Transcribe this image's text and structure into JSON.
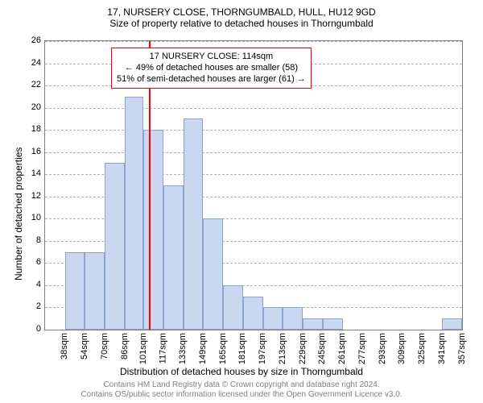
{
  "title_line1": "17, NURSERY CLOSE, THORNGUMBALD, HULL, HU12 9GD",
  "title_line2": "Size of property relative to detached houses in Thorngumbald",
  "title_fontsize": 12,
  "ylabel": "Number of detached properties",
  "xlabel": "Distribution of detached houses by size in Thorngumbald",
  "axis_label_fontsize": 12,
  "footer_line1": "Contains HM Land Registry data © Crown copyright and database right 2024.",
  "footer_line2": "Contains OS/public sector information licensed under the Open Government Licence v3.0.",
  "footer_fontsize": 10,
  "footer_color": "#808080",
  "chart": {
    "type": "histogram",
    "background_color": "#ffffff",
    "border_color": "#808080",
    "grid_color": "#b0b0b0",
    "bar_fill": "#c9d8f0",
    "bar_border": "#8aa3d0",
    "marker_color": "#ff0000",
    "marker_x_value": 114,
    "ylim": [
      0,
      26
    ],
    "yticks": [
      0,
      2,
      4,
      6,
      8,
      10,
      12,
      14,
      16,
      18,
      20,
      22,
      24,
      26
    ],
    "xlim": [
      30,
      365
    ],
    "xticks": [
      "38sqm",
      "54sqm",
      "70sqm",
      "86sqm",
      "101sqm",
      "117sqm",
      "133sqm",
      "149sqm",
      "165sqm",
      "181sqm",
      "197sqm",
      "213sqm",
      "229sqm",
      "245sqm",
      "261sqm",
      "277sqm",
      "293sqm",
      "309sqm",
      "325sqm",
      "341sqm",
      "357sqm"
    ],
    "xtick_values": [
      38,
      54,
      70,
      86,
      101,
      117,
      133,
      149,
      165,
      181,
      197,
      213,
      229,
      245,
      261,
      277,
      293,
      309,
      325,
      341,
      357
    ],
    "tick_fontsize": 11,
    "bars": [
      {
        "x0": 46,
        "x1": 62,
        "y": 7
      },
      {
        "x0": 62,
        "x1": 78,
        "y": 7
      },
      {
        "x0": 78,
        "x1": 94,
        "y": 15
      },
      {
        "x0": 94,
        "x1": 109,
        "y": 21
      },
      {
        "x0": 109,
        "x1": 125,
        "y": 18
      },
      {
        "x0": 125,
        "x1": 141,
        "y": 13
      },
      {
        "x0": 141,
        "x1": 157,
        "y": 19
      },
      {
        "x0": 157,
        "x1": 173,
        "y": 10
      },
      {
        "x0": 173,
        "x1": 189,
        "y": 4
      },
      {
        "x0": 189,
        "x1": 205,
        "y": 3
      },
      {
        "x0": 205,
        "x1": 221,
        "y": 2
      },
      {
        "x0": 221,
        "x1": 237,
        "y": 2
      },
      {
        "x0": 237,
        "x1": 253,
        "y": 1
      },
      {
        "x0": 253,
        "x1": 269,
        "y": 1
      },
      {
        "x0": 349,
        "x1": 365,
        "y": 1
      }
    ],
    "callout": {
      "line1": "17 NURSERY CLOSE: 114sqm",
      "line2": "← 49% of detached houses are smaller (58)",
      "line3": "51% of semi-detached houses are larger (61) →",
      "border_color": "#ff0000",
      "fontsize": 11
    }
  }
}
